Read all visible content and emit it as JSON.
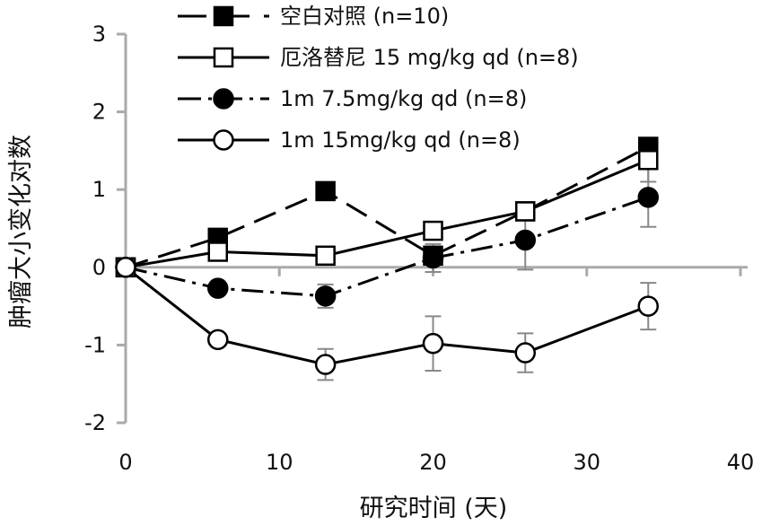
{
  "chart_data": {
    "type": "line",
    "title": "",
    "xlabel": "研究时间 (天)",
    "ylabel": "肿瘤大小变化对数",
    "xlim": [
      0,
      40
    ],
    "ylim": [
      -2,
      3
    ],
    "xticks": [
      0,
      10,
      20,
      30,
      40
    ],
    "yticks": [
      -2,
      -1,
      0,
      1,
      2,
      3
    ],
    "grid": false,
    "legend_position": "top",
    "series": [
      {
        "name": "空白对照 (n=10)",
        "marker": "square-filled",
        "line_style": "dash",
        "x": [
          0,
          6,
          13,
          20,
          26,
          34
        ],
        "y": [
          0.0,
          0.38,
          0.98,
          0.15,
          0.72,
          1.55
        ],
        "error": [
          0,
          0,
          0,
          0,
          0,
          0
        ]
      },
      {
        "name": "厄洛替尼 15 mg/kg qd (n=8)",
        "marker": "square-open",
        "line_style": "solid",
        "x": [
          0,
          6,
          13,
          20,
          26,
          34
        ],
        "y": [
          0.0,
          0.2,
          0.15,
          0.47,
          0.72,
          1.38
        ],
        "error": [
          0,
          0,
          0,
          0,
          0,
          0.28
        ]
      },
      {
        "name": "1m 7.5mg/kg qd (n=8)",
        "marker": "circle-filled",
        "line_style": "dashdot",
        "x": [
          0,
          6,
          13,
          20,
          26,
          34
        ],
        "y": [
          0.0,
          -0.27,
          -0.37,
          0.12,
          0.35,
          0.9
        ],
        "error": [
          0,
          0,
          0.15,
          0.18,
          0.38,
          0.38
        ]
      },
      {
        "name": "1m 15mg/kg qd (n=8)",
        "marker": "circle-open",
        "line_style": "solid",
        "x": [
          0,
          6,
          13,
          20,
          26,
          34
        ],
        "y": [
          0.0,
          -0.93,
          -1.25,
          -0.98,
          -1.1,
          -0.5
        ],
        "error": [
          0,
          0,
          0.2,
          0.35,
          0.25,
          0.3
        ]
      }
    ]
  }
}
